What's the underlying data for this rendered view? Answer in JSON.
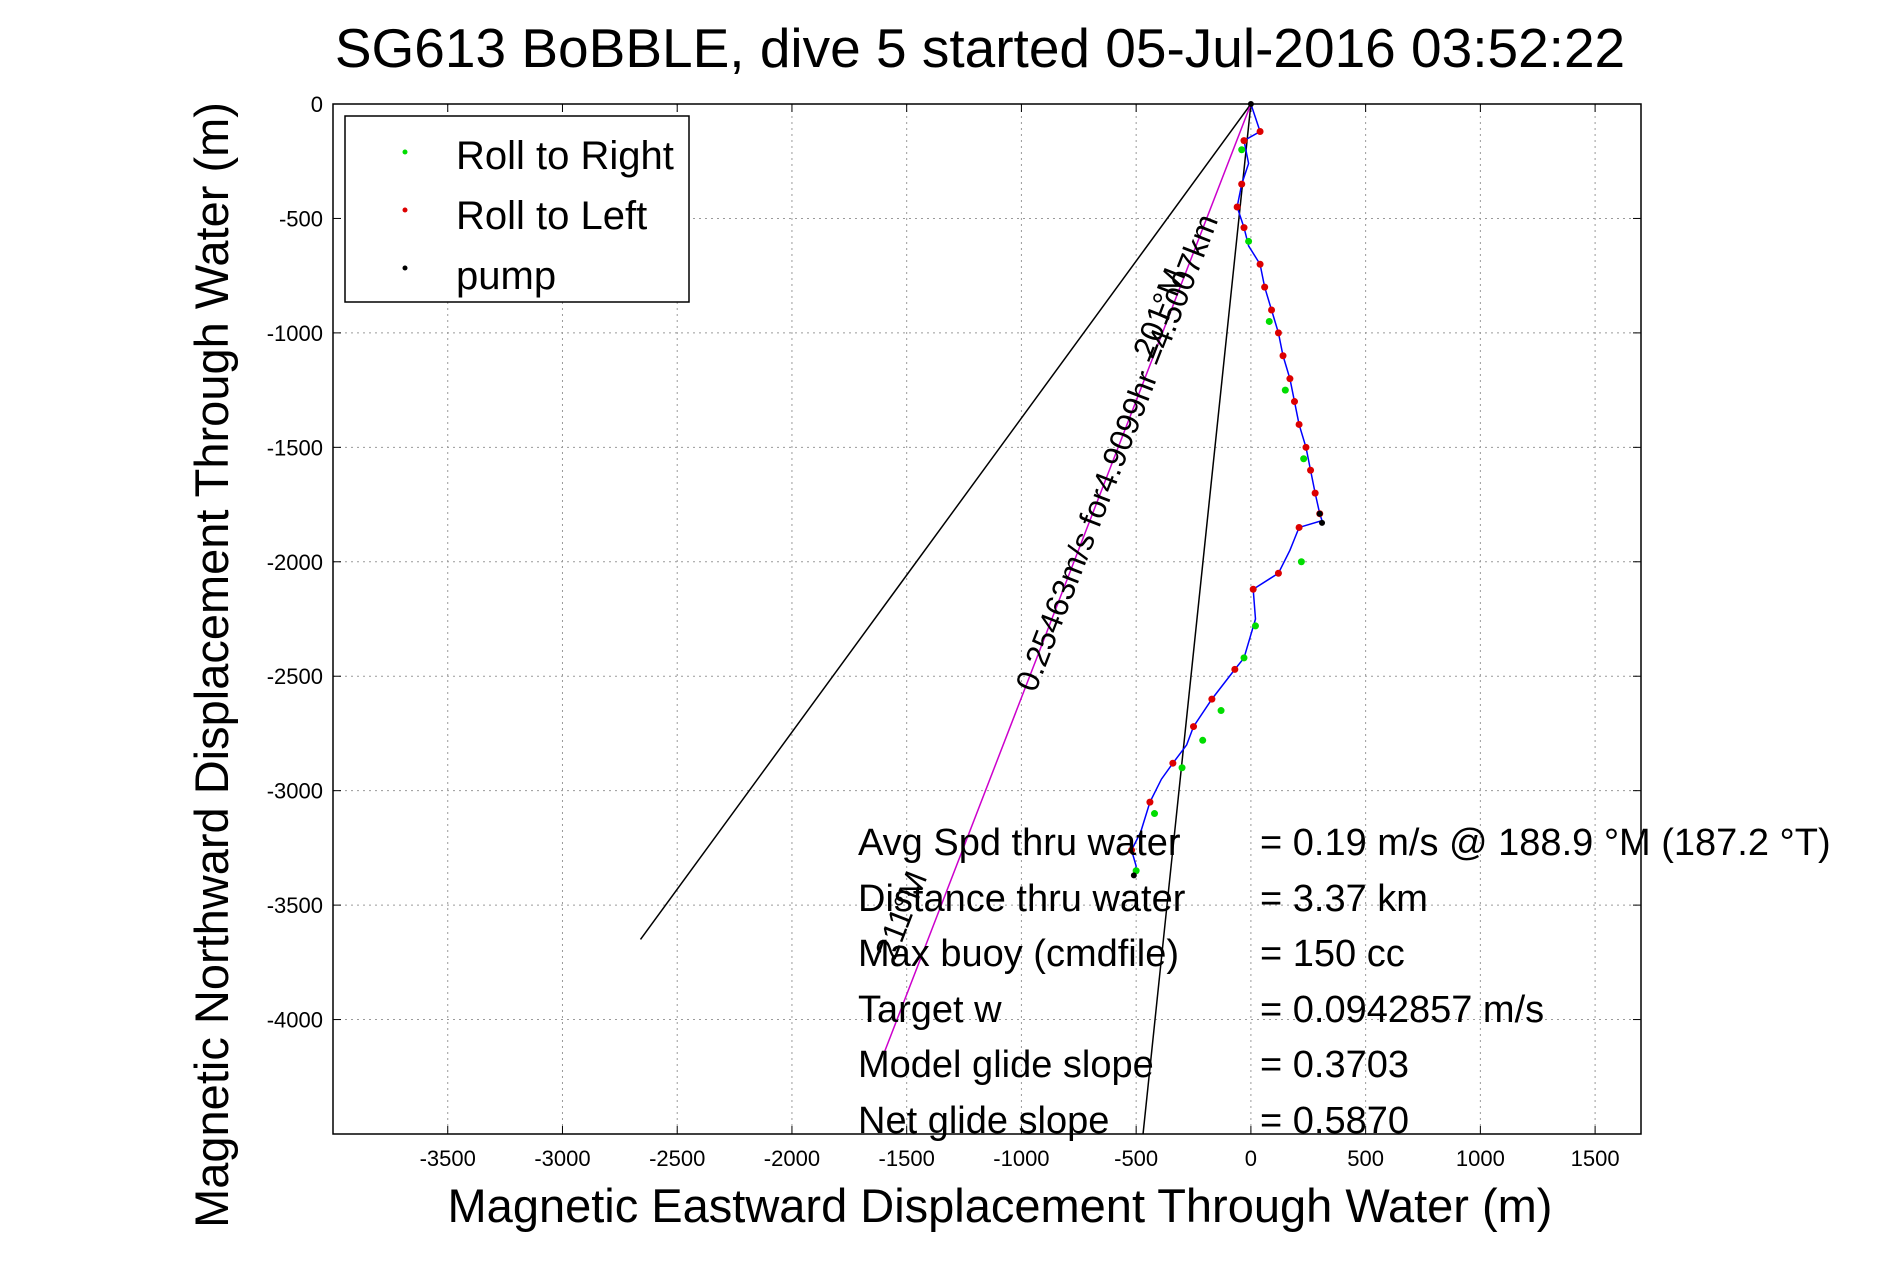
{
  "chart_data": {
    "type": "scatter",
    "title": "SG613 BoBBLE, dive 5 started 05-Jul-2016 03:52:22",
    "xlabel": "Magnetic Eastward Displacement Through Water (m)",
    "ylabel": "Magnetic Northward Displacement Through Water (m)",
    "xlim": [
      -4000,
      1700
    ],
    "ylim": [
      -4500,
      0
    ],
    "xticks": [
      -3500,
      -3000,
      -2500,
      -2000,
      -1500,
      -1000,
      -500,
      0,
      500,
      1000,
      1500
    ],
    "yticks": [
      0,
      -500,
      -1000,
      -1500,
      -2000,
      -2500,
      -3000,
      -3500,
      -4000
    ],
    "grid": true,
    "legend_position": "top-left",
    "legend": [
      {
        "label": "Roll to Right",
        "color": "#00dd00"
      },
      {
        "label": "Roll to Left",
        "color": "#dd0000"
      },
      {
        "label": "pump",
        "color": "#000000"
      }
    ],
    "track": {
      "color": "#0000ff",
      "points": [
        [
          0,
          0
        ],
        [
          40,
          -120
        ],
        [
          -30,
          -160
        ],
        [
          -10,
          -260
        ],
        [
          -40,
          -350
        ],
        [
          -60,
          -450
        ],
        [
          -30,
          -540
        ],
        [
          -10,
          -620
        ],
        [
          40,
          -700
        ],
        [
          60,
          -800
        ],
        [
          90,
          -900
        ],
        [
          120,
          -1000
        ],
        [
          140,
          -1100
        ],
        [
          170,
          -1200
        ],
        [
          190,
          -1300
        ],
        [
          210,
          -1400
        ],
        [
          240,
          -1500
        ],
        [
          260,
          -1600
        ],
        [
          280,
          -1700
        ],
        [
          300,
          -1790
        ],
        [
          310,
          -1820
        ],
        [
          210,
          -1850
        ],
        [
          190,
          -1900
        ],
        [
          170,
          -1950
        ],
        [
          120,
          -2050
        ],
        [
          10,
          -2120
        ],
        [
          20,
          -2250
        ],
        [
          -30,
          -2420
        ],
        [
          -70,
          -2470
        ],
        [
          -170,
          -2600
        ],
        [
          -250,
          -2720
        ],
        [
          -280,
          -2800
        ],
        [
          -340,
          -2880
        ],
        [
          -390,
          -2950
        ],
        [
          -440,
          -3050
        ],
        [
          -480,
          -3180
        ],
        [
          -520,
          -3260
        ],
        [
          -500,
          -3330
        ],
        [
          -510,
          -3370
        ]
      ]
    },
    "roll_left_x": [
      40,
      -30,
      -40,
      -60,
      -30,
      40,
      60,
      90,
      120,
      140,
      170,
      190,
      210,
      240,
      260,
      280,
      300,
      210,
      120,
      10,
      -70,
      -170,
      -250,
      -340,
      -440,
      -520
    ],
    "roll_left_y": [
      -120,
      -160,
      -350,
      -450,
      -540,
      -700,
      -800,
      -900,
      -1000,
      -1100,
      -1200,
      -1300,
      -1400,
      -1500,
      -1600,
      -1700,
      -1790,
      -1850,
      -2050,
      -2120,
      -2470,
      -2600,
      -2720,
      -2880,
      -3050,
      -3260
    ],
    "roll_right_x": [
      -40,
      -10,
      80,
      150,
      230,
      220,
      20,
      -30,
      -130,
      -210,
      -300,
      -420,
      -500
    ],
    "roll_right_y": [
      -200,
      -600,
      -950,
      -1250,
      -1550,
      -2000,
      -2280,
      -2420,
      -2650,
      -2780,
      -2900,
      -3100,
      -3350
    ],
    "pump_x": [
      0,
      300,
      310,
      -510
    ],
    "pump_y": [
      0,
      -1790,
      -1830,
      -3370
    ],
    "lines": [
      {
        "color": "#000000",
        "x": [
          0,
          -2660
        ],
        "y": [
          0,
          -3650
        ]
      },
      {
        "color": "#000000",
        "x": [
          0,
          -470
        ],
        "y": [
          0,
          -4500
        ]
      },
      {
        "color": "#cc00cc",
        "x": [
          0,
          -1600
        ],
        "y": [
          0,
          -4150
        ]
      }
    ],
    "annotations": {
      "heading_line_label": "201°M",
      "speed_line_label": "0.25463m/s for4.9099hr =4.5007km",
      "end_label": "211°M"
    },
    "stats": [
      {
        "label": "Avg Spd thru water",
        "value": "=  0.19 m/s @ 188.9 °M (187.2 °T)"
      },
      {
        "label": "Distance thru water",
        "value": "=  3.37 km"
      },
      {
        "label": "Max buoy (cmdfile)",
        "value": "= 150 cc"
      },
      {
        "label": "Target w",
        "value": "= 0.0942857 m/s"
      },
      {
        "label": "Model glide slope",
        "value": "= 0.3703"
      },
      {
        "label": "Net glide slope",
        "value": "= 0.5870"
      }
    ]
  }
}
